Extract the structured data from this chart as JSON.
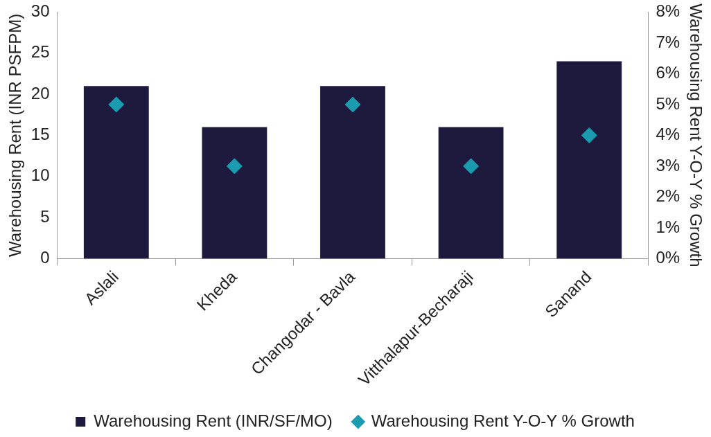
{
  "chart_data": {
    "type": "bar",
    "categories": [
      "Aslali",
      "Kheda",
      "Changodar - Bavla",
      "Vitthalapur-Becharaji",
      "Sanand"
    ],
    "series": [
      {
        "name": "Warehousing Rent (INR/SF/MO)",
        "color": "#1e1a3e",
        "values": [
          21,
          16,
          21,
          16,
          24
        ]
      },
      {
        "name": "Warehousing Rent Y-O-Y % Growth",
        "type": "scatter",
        "axis": "y2",
        "marker": "diamond",
        "color": "#1a9bb0",
        "x": [
          "Aslali",
          "Kheda",
          "Changodar - Bavla",
          "Vitthalapur-Becharaji",
          "Sanand"
        ],
        "values": [
          5,
          3,
          5,
          3,
          4
        ]
      }
    ],
    "ylabel": "Warehousing Rent (INR PSFPM)",
    "y2label": "Warehousing Rent Y-O-Y % Growth",
    "ylim": [
      0,
      30
    ],
    "yticks": [
      0,
      5,
      10,
      15,
      20,
      25,
      30
    ],
    "y2lim": [
      0,
      8
    ],
    "y2ticks": [
      {
        "value": 0,
        "label": "0%"
      },
      {
        "value": 1,
        "label": "1%"
      },
      {
        "value": 2,
        "label": "2%"
      },
      {
        "value": 3,
        "label": "3%"
      },
      {
        "value": 4,
        "label": "4%"
      },
      {
        "value": 5,
        "label": "5%"
      },
      {
        "value": 6,
        "label": "6%"
      },
      {
        "value": 7,
        "label": "7%"
      },
      {
        "value": 8,
        "label": "8%"
      }
    ],
    "grid": false,
    "legend": "bottom"
  }
}
